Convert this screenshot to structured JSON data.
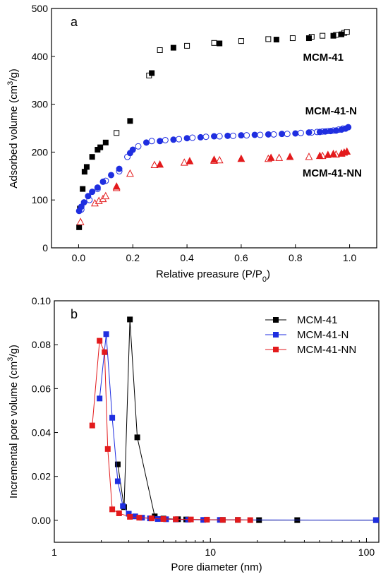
{
  "chart_data": [
    {
      "type": "scatter",
      "panel_label": "a",
      "xlabel": "Relative preasure (P/P₀)",
      "ylabel": "Adsorbed volume (cm³/g)",
      "xlim": [
        -0.1,
        1.1
      ],
      "ylim": [
        0,
        500
      ],
      "xticks": [
        "0.0",
        "0.2",
        "0.4",
        "0.6",
        "0.8",
        "1.0"
      ],
      "yticks": [
        "0",
        "100",
        "200",
        "300",
        "400",
        "500"
      ],
      "grid": false,
      "series": [
        {
          "name": "MCM-41",
          "color": "#000000",
          "marker": "square",
          "adsorption": {
            "x": [
              0.002,
              0.005,
              0.015,
              0.022,
              0.03,
              0.05,
              0.07,
              0.08,
              0.1,
              0.19,
              0.27,
              0.35,
              0.52,
              0.73,
              0.85,
              0.94,
              0.97
            ],
            "y": [
              43,
              82,
              123,
              159,
              169,
              190,
              205,
              210,
              220,
              265,
              365,
              418,
              427,
              435,
              438,
              443,
              446
            ]
          },
          "desorption": {
            "x": [
              0.14,
              0.26,
              0.3,
              0.4,
              0.5,
              0.6,
              0.7,
              0.79,
              0.86,
              0.9,
              0.95,
              0.98,
              0.99
            ],
            "y": [
              240,
              360,
              413,
              422,
              428,
              432,
              436,
              438,
              441,
              443,
              445,
              449,
              451
            ]
          },
          "label_text": "MCM-41"
        },
        {
          "name": "MCM-41-N",
          "color": "#1f2ee0",
          "marker": "circle",
          "adsorption": {
            "x": [
              0.002,
              0.01,
              0.02,
              0.035,
              0.05,
              0.07,
              0.09,
              0.12,
              0.15,
              0.19,
              0.2,
              0.25,
              0.3,
              0.35,
              0.4,
              0.45,
              0.5,
              0.55,
              0.6,
              0.65,
              0.7,
              0.75,
              0.8,
              0.85,
              0.89,
              0.91,
              0.93,
              0.95,
              0.97,
              0.985,
              0.995
            ],
            "y": [
              77,
              86,
              95,
              108,
              117,
              126,
              138,
              152,
              165,
              198,
              205,
              220,
              223,
              226,
              229,
              231,
              233,
              234,
              235,
              236,
              237,
              238,
              239,
              241,
              242,
              243,
              244,
              245,
              247,
              249,
              252
            ]
          },
          "desorption": {
            "x": [
              0.01,
              0.04,
              0.07,
              0.1,
              0.15,
              0.18,
              0.22,
              0.27,
              0.32,
              0.37,
              0.42,
              0.47,
              0.52,
              0.57,
              0.62,
              0.67,
              0.72,
              0.77,
              0.82,
              0.86,
              0.88,
              0.9,
              0.92,
              0.94,
              0.96,
              0.975
            ],
            "y": [
              80,
              100,
              123,
              140,
              160,
              190,
              212,
              223,
              225,
              227,
              230,
              232,
              233,
              234,
              235,
              236,
              237,
              238,
              240,
              241,
              242,
              243,
              244,
              245,
              247,
              249
            ]
          },
          "label_text": "MCM-41-N"
        },
        {
          "name": "MCM-41-NN",
          "color": "#e31a1c",
          "marker": "triangle",
          "adsorption": {
            "x": [
              0.14,
              0.3,
              0.41,
              0.5,
              0.6,
              0.71,
              0.78,
              0.89,
              0.92,
              0.94,
              0.97,
              0.98,
              0.99
            ],
            "y": [
              128,
              174,
              181,
              184,
              186,
              188,
              190,
              192,
              194,
              196,
              197,
              199,
              201
            ]
          },
          "desorption": {
            "x": [
              0.007,
              0.06,
              0.075,
              0.09,
              0.1,
              0.14,
              0.19,
              0.28,
              0.39,
              0.5,
              0.52,
              0.7,
              0.74,
              0.85,
              0.9,
              0.95,
              0.97
            ],
            "y": [
              54,
              93,
              98,
              102,
              108,
              125,
              155,
              173,
              178,
              182,
              183,
              186,
              188,
              190,
              192,
              195,
              197
            ]
          },
          "label_text": "MCM-41-NN"
        }
      ]
    },
    {
      "type": "line",
      "panel_label": "b",
      "xlabel": "Pore diameter (nm)",
      "ylabel": "Incremental pore volume (cm³/g)",
      "xscale": "log",
      "xlim": [
        1,
        120
      ],
      "ylim": [
        -0.01,
        0.1
      ],
      "xticks": [
        "1",
        "10",
        "100"
      ],
      "yticks": [
        "0.00",
        "0.02",
        "0.04",
        "0.06",
        "0.08",
        "0.10"
      ],
      "legend_position": "top-right",
      "grid": false,
      "series": [
        {
          "name": "MCM-41",
          "color": "#000000",
          "marker": "square",
          "x": [
            2.55,
            2.8,
            3.05,
            3.4,
            4.4,
            5.0,
            6.2,
            7.0,
            9.5,
            12.0,
            15.0,
            20.5,
            36.0,
            115.0
          ],
          "y": [
            0.0255,
            0.006,
            0.0915,
            0.0378,
            0.0018,
            0.0008,
            0.0005,
            0.0004,
            0.0003,
            0.0002,
            0.0002,
            0.0001,
            0.0001,
            0.0001
          ]
        },
        {
          "name": "MCM-41-N",
          "color": "#1f2ee0",
          "marker": "square",
          "x": [
            1.95,
            2.15,
            2.35,
            2.55,
            2.75,
            3.0,
            3.3,
            3.65,
            4.1,
            4.6,
            5.2,
            6.0,
            7.2,
            9.0,
            11.5,
            115.0
          ],
          "y": [
            0.0555,
            0.0848,
            0.0467,
            0.0178,
            0.0065,
            0.003,
            0.0018,
            0.0012,
            0.0009,
            0.0006,
            0.0005,
            0.0004,
            0.0003,
            0.0002,
            0.0002,
            0.0001
          ]
        },
        {
          "name": "MCM-41-NN",
          "color": "#e31a1c",
          "marker": "square",
          "x": [
            1.75,
            1.95,
            2.1,
            2.2,
            2.35,
            2.6,
            3.05,
            3.5,
            4.2,
            5.0,
            6.0,
            7.5,
            9.5,
            12.0,
            15.0,
            18.0
          ],
          "y": [
            0.0432,
            0.0818,
            0.0766,
            0.0325,
            0.005,
            0.0032,
            0.0016,
            0.0012,
            0.0009,
            0.0006,
            0.0005,
            0.0004,
            0.0003,
            0.0002,
            0.0002,
            0.0001
          ]
        }
      ]
    }
  ]
}
